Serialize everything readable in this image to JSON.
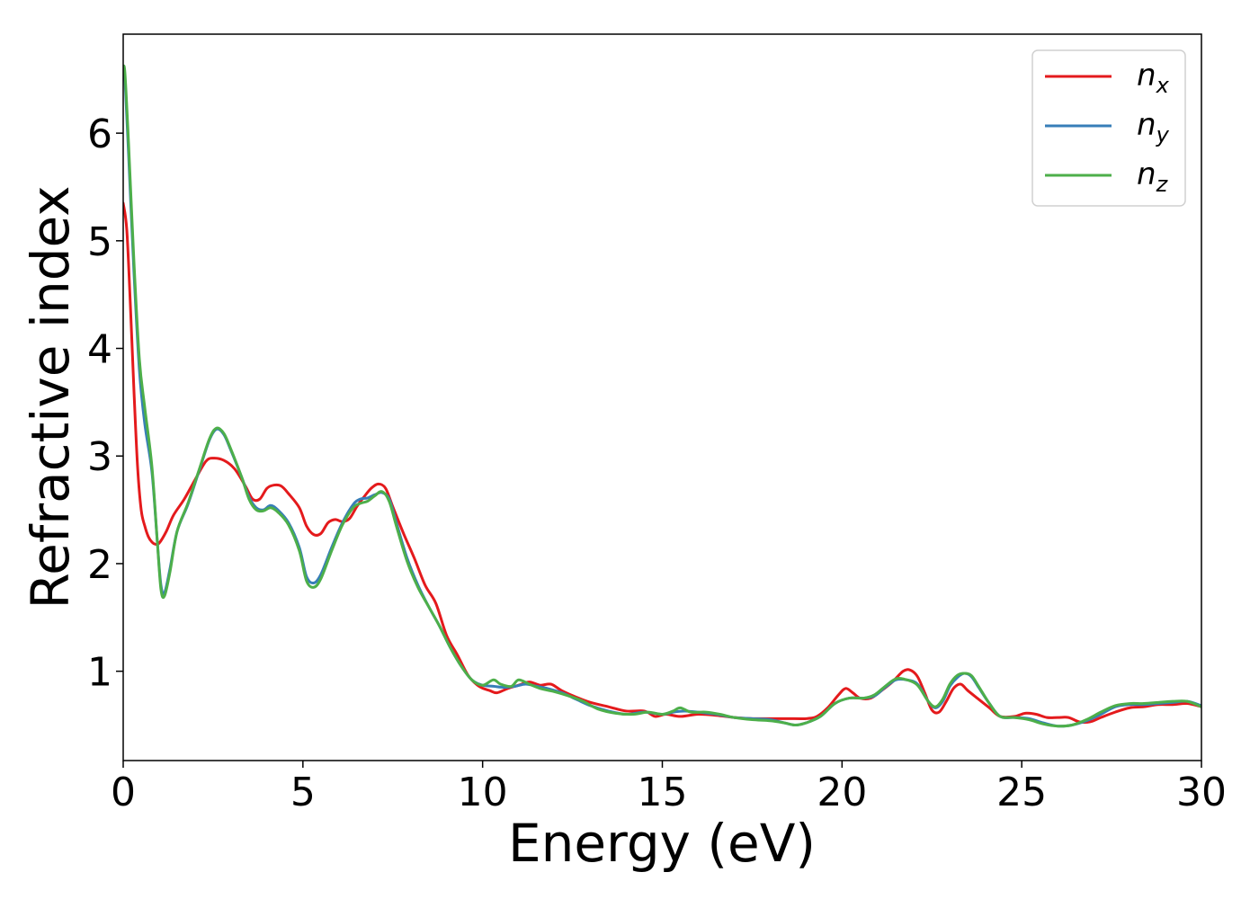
{
  "chart_data": {
    "type": "line",
    "title": "",
    "xlabel": "Energy (eV)",
    "ylabel": "Refractive index",
    "xlim": [
      0,
      30
    ],
    "ylim": [
      0.17,
      6.92
    ],
    "xticks": [
      0,
      5,
      10,
      15,
      20,
      25,
      30
    ],
    "xtick_labels": [
      "0",
      "5",
      "10",
      "15",
      "20",
      "25",
      "30"
    ],
    "yticks": [
      1,
      2,
      3,
      4,
      5,
      6
    ],
    "ytick_labels": [
      "1",
      "2",
      "3",
      "4",
      "5",
      "6"
    ],
    "grid": false,
    "legend_position": "top-right",
    "series": [
      {
        "name": "n_x",
        "label_main": "n",
        "label_sub": "x",
        "color": "#e41a1c",
        "points": [
          [
            0,
            5.35
          ],
          [
            0.1,
            5.1
          ],
          [
            0.2,
            4.4
          ],
          [
            0.3,
            3.6
          ],
          [
            0.4,
            2.9
          ],
          [
            0.5,
            2.5
          ],
          [
            0.6,
            2.35
          ],
          [
            0.7,
            2.25
          ],
          [
            0.8,
            2.2
          ],
          [
            0.9,
            2.18
          ],
          [
            1.0,
            2.19
          ],
          [
            1.2,
            2.3
          ],
          [
            1.4,
            2.45
          ],
          [
            1.7,
            2.6
          ],
          [
            2.0,
            2.78
          ],
          [
            2.3,
            2.95
          ],
          [
            2.5,
            2.98
          ],
          [
            2.8,
            2.96
          ],
          [
            3.1,
            2.88
          ],
          [
            3.4,
            2.72
          ],
          [
            3.6,
            2.6
          ],
          [
            3.8,
            2.6
          ],
          [
            4.0,
            2.7
          ],
          [
            4.2,
            2.73
          ],
          [
            4.4,
            2.72
          ],
          [
            4.6,
            2.65
          ],
          [
            4.9,
            2.52
          ],
          [
            5.1,
            2.35
          ],
          [
            5.3,
            2.27
          ],
          [
            5.5,
            2.28
          ],
          [
            5.7,
            2.38
          ],
          [
            5.9,
            2.41
          ],
          [
            6.1,
            2.39
          ],
          [
            6.3,
            2.42
          ],
          [
            6.5,
            2.53
          ],
          [
            6.7,
            2.62
          ],
          [
            6.9,
            2.7
          ],
          [
            7.1,
            2.74
          ],
          [
            7.3,
            2.7
          ],
          [
            7.5,
            2.53
          ],
          [
            7.8,
            2.28
          ],
          [
            8.1,
            2.05
          ],
          [
            8.4,
            1.8
          ],
          [
            8.7,
            1.63
          ],
          [
            9.0,
            1.33
          ],
          [
            9.3,
            1.15
          ],
          [
            9.6,
            0.96
          ],
          [
            9.9,
            0.86
          ],
          [
            10.2,
            0.82
          ],
          [
            10.4,
            0.8
          ],
          [
            10.7,
            0.84
          ],
          [
            11.0,
            0.87
          ],
          [
            11.3,
            0.9
          ],
          [
            11.6,
            0.87
          ],
          [
            11.9,
            0.88
          ],
          [
            12.2,
            0.82
          ],
          [
            12.6,
            0.76
          ],
          [
            13.0,
            0.71
          ],
          [
            13.5,
            0.67
          ],
          [
            14.0,
            0.63
          ],
          [
            14.5,
            0.63
          ],
          [
            14.8,
            0.58
          ],
          [
            15.1,
            0.6
          ],
          [
            15.5,
            0.58
          ],
          [
            16.0,
            0.6
          ],
          [
            16.5,
            0.59
          ],
          [
            17.0,
            0.57
          ],
          [
            17.5,
            0.56
          ],
          [
            18.0,
            0.56
          ],
          [
            18.5,
            0.56
          ],
          [
            19.0,
            0.56
          ],
          [
            19.3,
            0.58
          ],
          [
            19.6,
            0.66
          ],
          [
            19.9,
            0.78
          ],
          [
            20.1,
            0.84
          ],
          [
            20.3,
            0.8
          ],
          [
            20.5,
            0.75
          ],
          [
            20.8,
            0.75
          ],
          [
            21.1,
            0.82
          ],
          [
            21.4,
            0.9
          ],
          [
            21.7,
            1.0
          ],
          [
            21.9,
            1.01
          ],
          [
            22.1,
            0.95
          ],
          [
            22.3,
            0.8
          ],
          [
            22.5,
            0.64
          ],
          [
            22.7,
            0.62
          ],
          [
            22.9,
            0.72
          ],
          [
            23.1,
            0.84
          ],
          [
            23.3,
            0.88
          ],
          [
            23.5,
            0.82
          ],
          [
            23.8,
            0.74
          ],
          [
            24.1,
            0.66
          ],
          [
            24.4,
            0.58
          ],
          [
            24.8,
            0.58
          ],
          [
            25.1,
            0.61
          ],
          [
            25.4,
            0.6
          ],
          [
            25.7,
            0.57
          ],
          [
            26.0,
            0.57
          ],
          [
            26.3,
            0.57
          ],
          [
            26.6,
            0.53
          ],
          [
            26.9,
            0.53
          ],
          [
            27.2,
            0.57
          ],
          [
            27.6,
            0.62
          ],
          [
            28.0,
            0.66
          ],
          [
            28.4,
            0.67
          ],
          [
            28.8,
            0.69
          ],
          [
            29.2,
            0.69
          ],
          [
            29.6,
            0.7
          ],
          [
            30.0,
            0.67
          ]
        ]
      },
      {
        "name": "n_y",
        "label_main": "n",
        "label_sub": "y",
        "color": "#377eb8",
        "points": [
          [
            0,
            6.6
          ],
          [
            0.05,
            6.5
          ],
          [
            0.15,
            5.8
          ],
          [
            0.3,
            4.7
          ],
          [
            0.45,
            3.8
          ],
          [
            0.6,
            3.3
          ],
          [
            0.8,
            2.85
          ],
          [
            0.95,
            2.2
          ],
          [
            1.05,
            1.8
          ],
          [
            1.15,
            1.73
          ],
          [
            1.3,
            1.95
          ],
          [
            1.5,
            2.3
          ],
          [
            1.8,
            2.55
          ],
          [
            2.1,
            2.85
          ],
          [
            2.4,
            3.15
          ],
          [
            2.6,
            3.25
          ],
          [
            2.8,
            3.2
          ],
          [
            3.0,
            3.05
          ],
          [
            3.3,
            2.8
          ],
          [
            3.5,
            2.62
          ],
          [
            3.7,
            2.52
          ],
          [
            3.9,
            2.5
          ],
          [
            4.1,
            2.54
          ],
          [
            4.3,
            2.5
          ],
          [
            4.6,
            2.38
          ],
          [
            4.9,
            2.15
          ],
          [
            5.1,
            1.88
          ],
          [
            5.3,
            1.82
          ],
          [
            5.5,
            1.9
          ],
          [
            5.8,
            2.15
          ],
          [
            6.1,
            2.38
          ],
          [
            6.4,
            2.55
          ],
          [
            6.6,
            2.6
          ],
          [
            6.8,
            2.61
          ],
          [
            7.0,
            2.64
          ],
          [
            7.2,
            2.66
          ],
          [
            7.4,
            2.6
          ],
          [
            7.6,
            2.38
          ],
          [
            7.9,
            2.05
          ],
          [
            8.2,
            1.8
          ],
          [
            8.5,
            1.6
          ],
          [
            8.8,
            1.42
          ],
          [
            9.1,
            1.22
          ],
          [
            9.4,
            1.05
          ],
          [
            9.7,
            0.92
          ],
          [
            10.0,
            0.87
          ],
          [
            10.3,
            0.86
          ],
          [
            10.6,
            0.85
          ],
          [
            10.9,
            0.86
          ],
          [
            11.2,
            0.88
          ],
          [
            11.5,
            0.86
          ],
          [
            11.8,
            0.84
          ],
          [
            12.2,
            0.8
          ],
          [
            12.6,
            0.74
          ],
          [
            13.0,
            0.68
          ],
          [
            13.5,
            0.63
          ],
          [
            14.0,
            0.6
          ],
          [
            14.5,
            0.62
          ],
          [
            15.0,
            0.6
          ],
          [
            15.3,
            0.62
          ],
          [
            15.6,
            0.63
          ],
          [
            16.0,
            0.62
          ],
          [
            16.5,
            0.6
          ],
          [
            17.0,
            0.57
          ],
          [
            17.5,
            0.56
          ],
          [
            18.0,
            0.55
          ],
          [
            18.4,
            0.52
          ],
          [
            18.7,
            0.5
          ],
          [
            19.0,
            0.52
          ],
          [
            19.4,
            0.58
          ],
          [
            19.8,
            0.7
          ],
          [
            20.2,
            0.75
          ],
          [
            20.6,
            0.75
          ],
          [
            20.9,
            0.77
          ],
          [
            21.2,
            0.85
          ],
          [
            21.5,
            0.92
          ],
          [
            21.8,
            0.92
          ],
          [
            22.1,
            0.88
          ],
          [
            22.4,
            0.72
          ],
          [
            22.6,
            0.66
          ],
          [
            22.8,
            0.72
          ],
          [
            23.0,
            0.86
          ],
          [
            23.2,
            0.94
          ],
          [
            23.4,
            0.98
          ],
          [
            23.6,
            0.95
          ],
          [
            23.8,
            0.85
          ],
          [
            24.1,
            0.7
          ],
          [
            24.4,
            0.58
          ],
          [
            24.8,
            0.57
          ],
          [
            25.2,
            0.56
          ],
          [
            25.6,
            0.52
          ],
          [
            26.0,
            0.49
          ],
          [
            26.4,
            0.5
          ],
          [
            26.8,
            0.54
          ],
          [
            27.2,
            0.6
          ],
          [
            27.6,
            0.67
          ],
          [
            28.0,
            0.69
          ],
          [
            28.4,
            0.69
          ],
          [
            28.8,
            0.7
          ],
          [
            29.2,
            0.71
          ],
          [
            29.6,
            0.72
          ],
          [
            30.0,
            0.68
          ]
        ]
      },
      {
        "name": "n_z",
        "label_main": "n",
        "label_sub": "z",
        "color": "#4daf4a",
        "points": [
          [
            0,
            6.62
          ],
          [
            0.05,
            6.55
          ],
          [
            0.15,
            5.9
          ],
          [
            0.3,
            4.8
          ],
          [
            0.45,
            3.9
          ],
          [
            0.6,
            3.45
          ],
          [
            0.8,
            2.9
          ],
          [
            0.95,
            2.2
          ],
          [
            1.05,
            1.76
          ],
          [
            1.15,
            1.7
          ],
          [
            1.3,
            1.92
          ],
          [
            1.5,
            2.3
          ],
          [
            1.8,
            2.56
          ],
          [
            2.1,
            2.86
          ],
          [
            2.4,
            3.16
          ],
          [
            2.6,
            3.26
          ],
          [
            2.8,
            3.21
          ],
          [
            3.0,
            3.06
          ],
          [
            3.3,
            2.8
          ],
          [
            3.5,
            2.6
          ],
          [
            3.7,
            2.5
          ],
          [
            3.9,
            2.49
          ],
          [
            4.1,
            2.52
          ],
          [
            4.3,
            2.48
          ],
          [
            4.6,
            2.36
          ],
          [
            4.9,
            2.12
          ],
          [
            5.1,
            1.84
          ],
          [
            5.3,
            1.78
          ],
          [
            5.5,
            1.86
          ],
          [
            5.8,
            2.12
          ],
          [
            6.1,
            2.36
          ],
          [
            6.4,
            2.52
          ],
          [
            6.6,
            2.56
          ],
          [
            6.8,
            2.58
          ],
          [
            7.0,
            2.63
          ],
          [
            7.2,
            2.67
          ],
          [
            7.4,
            2.58
          ],
          [
            7.6,
            2.35
          ],
          [
            7.9,
            2.02
          ],
          [
            8.2,
            1.78
          ],
          [
            8.5,
            1.6
          ],
          [
            8.8,
            1.42
          ],
          [
            9.1,
            1.22
          ],
          [
            9.4,
            1.05
          ],
          [
            9.7,
            0.92
          ],
          [
            10.0,
            0.87
          ],
          [
            10.3,
            0.92
          ],
          [
            10.5,
            0.88
          ],
          [
            10.8,
            0.86
          ],
          [
            11.0,
            0.92
          ],
          [
            11.3,
            0.88
          ],
          [
            11.6,
            0.84
          ],
          [
            12.0,
            0.81
          ],
          [
            12.4,
            0.77
          ],
          [
            12.8,
            0.72
          ],
          [
            13.2,
            0.65
          ],
          [
            13.7,
            0.61
          ],
          [
            14.2,
            0.6
          ],
          [
            14.6,
            0.62
          ],
          [
            15.0,
            0.6
          ],
          [
            15.3,
            0.63
          ],
          [
            15.5,
            0.66
          ],
          [
            15.8,
            0.62
          ],
          [
            16.2,
            0.62
          ],
          [
            16.6,
            0.6
          ],
          [
            17.0,
            0.57
          ],
          [
            17.5,
            0.55
          ],
          [
            18.0,
            0.54
          ],
          [
            18.4,
            0.52
          ],
          [
            18.7,
            0.5
          ],
          [
            19.0,
            0.52
          ],
          [
            19.4,
            0.58
          ],
          [
            19.8,
            0.7
          ],
          [
            20.2,
            0.75
          ],
          [
            20.6,
            0.75
          ],
          [
            20.9,
            0.78
          ],
          [
            21.2,
            0.86
          ],
          [
            21.5,
            0.93
          ],
          [
            21.8,
            0.92
          ],
          [
            22.1,
            0.87
          ],
          [
            22.4,
            0.72
          ],
          [
            22.6,
            0.67
          ],
          [
            22.8,
            0.74
          ],
          [
            23.0,
            0.88
          ],
          [
            23.2,
            0.96
          ],
          [
            23.4,
            0.98
          ],
          [
            23.6,
            0.96
          ],
          [
            23.8,
            0.86
          ],
          [
            24.1,
            0.7
          ],
          [
            24.4,
            0.58
          ],
          [
            24.8,
            0.57
          ],
          [
            25.2,
            0.55
          ],
          [
            25.6,
            0.51
          ],
          [
            26.0,
            0.49
          ],
          [
            26.4,
            0.5
          ],
          [
            26.8,
            0.55
          ],
          [
            27.2,
            0.62
          ],
          [
            27.6,
            0.68
          ],
          [
            28.0,
            0.7
          ],
          [
            28.4,
            0.7
          ],
          [
            28.8,
            0.71
          ],
          [
            29.2,
            0.72
          ],
          [
            29.6,
            0.72
          ],
          [
            30.0,
            0.67
          ]
        ]
      }
    ]
  }
}
